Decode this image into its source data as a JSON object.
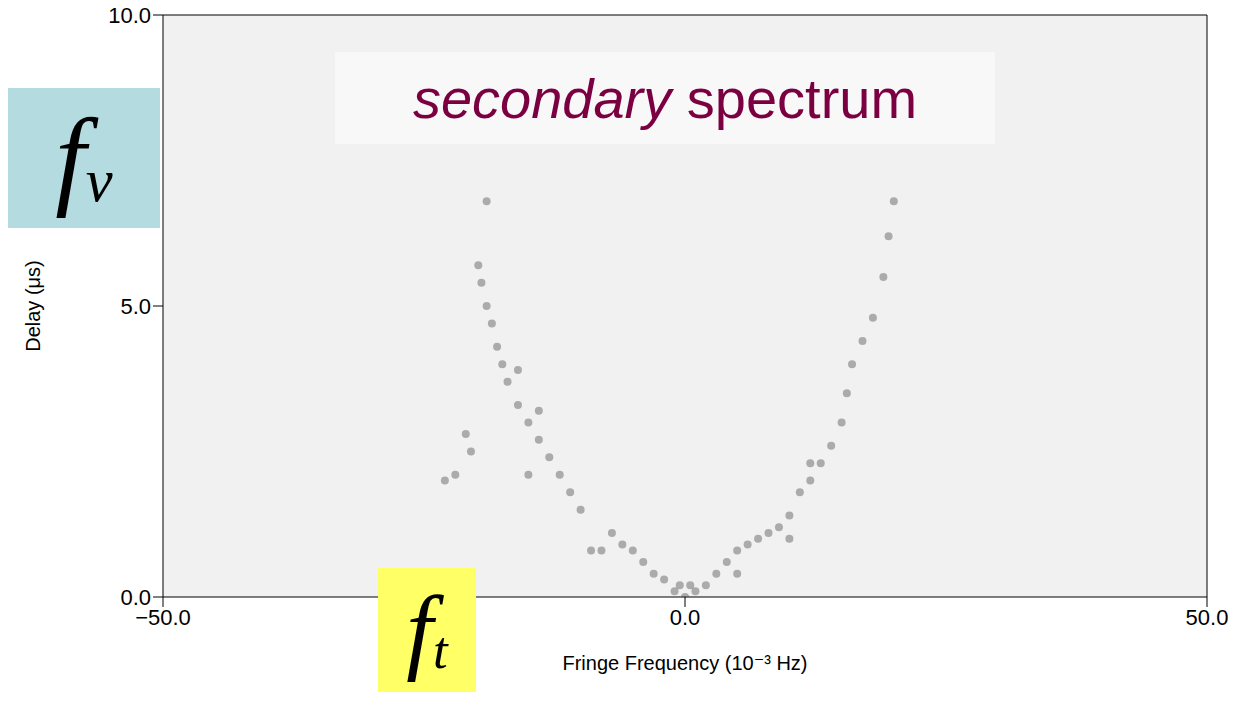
{
  "chart_data": {
    "type": "scatter",
    "annotations": [
      "secondary spectrum",
      "fν",
      "ft"
    ],
    "x_label": "Fringe Frequency (10⁻³ Hz)",
    "y_label": "Delay (μs)",
    "x": [
      0,
      0.5,
      -0.5,
      -1,
      -2,
      -3,
      -4,
      -5,
      -6,
      -7,
      -8,
      -9,
      -10,
      -11,
      -12,
      -13,
      -14,
      -15,
      -16,
      -17,
      -17.5,
      -18,
      -18.5,
      -19,
      -19.5,
      -19.8,
      -19,
      -20.5,
      -22,
      -23,
      -21,
      -14,
      -16,
      -15,
      1,
      2,
      3,
      4,
      5,
      6,
      7,
      8,
      9,
      10,
      11,
      12,
      13,
      14,
      15,
      15.5,
      16,
      17,
      18,
      19,
      19.5,
      20,
      10,
      12,
      5
    ],
    "values": [
      0,
      0.2,
      0.2,
      0.1,
      0.3,
      0.4,
      0.6,
      0.8,
      0.9,
      1.1,
      0.8,
      0.8,
      1.5,
      1.8,
      2.1,
      2.4,
      2.7,
      3.0,
      3.3,
      3.7,
      4.0,
      4.3,
      4.7,
      5.0,
      5.4,
      5.7,
      6.8,
      2.5,
      2.1,
      2.0,
      2.8,
      3.2,
      3.9,
      2.1,
      0.1,
      0.2,
      0.4,
      0.6,
      0.8,
      0.9,
      1.0,
      1.1,
      1.2,
      1.4,
      1.8,
      2.0,
      2.3,
      2.6,
      3.0,
      3.5,
      4.0,
      4.4,
      4.8,
      5.5,
      6.2,
      6.8,
      1.0,
      2.3,
      0.4
    ],
    "color": "#444444",
    "marker": "circle",
    "xlim": [
      -50,
      50
    ],
    "ylim": [
      0,
      10
    ],
    "xticks": [
      {
        "value": -50,
        "label": "−50.0"
      },
      {
        "value": 0,
        "label": "0.0"
      },
      {
        "value": 50,
        "label": "50.0"
      }
    ],
    "yticks": [
      {
        "value": 0,
        "label": "0.0"
      },
      {
        "value": 5,
        "label": "5.0"
      },
      {
        "value": 10,
        "label": "10.0"
      }
    ],
    "grid": false
  }
}
